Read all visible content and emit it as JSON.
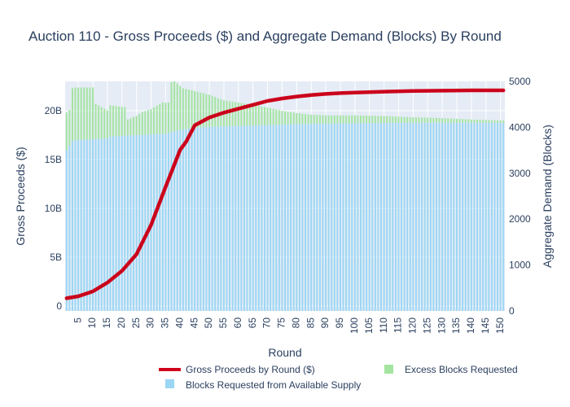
{
  "chart_data": {
    "type": "bar",
    "title": "Auction 110 - Gross Proceeds ($) and Aggregate Demand (Blocks) By Round",
    "xlabel": "Round",
    "ylabel": "Gross Proceeds ($)",
    "y2label": "Aggregate Demand (Blocks)",
    "x_range": [
      1,
      151
    ],
    "x_ticks": [
      5,
      10,
      15,
      20,
      25,
      30,
      35,
      40,
      45,
      50,
      55,
      60,
      65,
      70,
      75,
      80,
      85,
      90,
      95,
      100,
      105,
      110,
      115,
      120,
      125,
      130,
      135,
      140,
      145,
      150
    ],
    "x_tick_labels": [
      "5",
      "10",
      "15",
      "20",
      "25",
      "30",
      "35",
      "40",
      "45",
      "50",
      "55",
      "60",
      "65",
      "70",
      "75",
      "80",
      "85",
      "90",
      "95",
      "100",
      "105",
      "110",
      "115",
      "120",
      "125",
      "130",
      "135",
      "140",
      "145",
      "150"
    ],
    "ylim": [
      -0.5,
      23
    ],
    "y_ticks": [
      0,
      5,
      10,
      15,
      20
    ],
    "y_tick_labels": [
      "0",
      "5B",
      "10B",
      "15B",
      "20B"
    ],
    "y2lim": [
      0,
      5000
    ],
    "y2_ticks": [
      0,
      1000,
      2000,
      3000,
      4000,
      5000
    ],
    "y2_tick_labels": [
      "0",
      "1000",
      "2000",
      "3000",
      "4000",
      "5000"
    ],
    "barmode": "stack",
    "legend_position": "bottom",
    "grid": true,
    "series": [
      {
        "name": "Gross Proceeds by Round ($)",
        "type": "line",
        "axis": "y",
        "unit": "billions USD",
        "color": "#d0021b",
        "points": [
          [
            1,
            0.8
          ],
          [
            5,
            1.0
          ],
          [
            10,
            1.5
          ],
          [
            15,
            2.4
          ],
          [
            20,
            3.6
          ],
          [
            25,
            5.3
          ],
          [
            30,
            8.3
          ],
          [
            35,
            12.2
          ],
          [
            40,
            16.0
          ],
          [
            42,
            16.8
          ],
          [
            45,
            18.5
          ],
          [
            50,
            19.3
          ],
          [
            55,
            19.8
          ],
          [
            60,
            20.2
          ],
          [
            65,
            20.6
          ],
          [
            70,
            21.0
          ],
          [
            75,
            21.25
          ],
          [
            80,
            21.45
          ],
          [
            85,
            21.6
          ],
          [
            90,
            21.72
          ],
          [
            95,
            21.8
          ],
          [
            100,
            21.85
          ],
          [
            110,
            21.95
          ],
          [
            120,
            22.02
          ],
          [
            130,
            22.05
          ],
          [
            140,
            22.08
          ],
          [
            151,
            22.08
          ]
        ]
      },
      {
        "name": "Blocks Requested from Available Supply",
        "type": "bar",
        "axis": "y2",
        "color": "#9bd6f4",
        "points": [
          [
            1,
            3500
          ],
          [
            3,
            3700
          ],
          [
            4,
            3720
          ],
          [
            10,
            3740
          ],
          [
            15,
            3760
          ],
          [
            16,
            3800
          ],
          [
            25,
            3830
          ],
          [
            35,
            3860
          ],
          [
            37,
            3900
          ],
          [
            40,
            3940
          ],
          [
            45,
            3990
          ],
          [
            50,
            4010
          ],
          [
            60,
            4030
          ],
          [
            70,
            4050
          ],
          [
            80,
            4070
          ],
          [
            90,
            4080
          ],
          [
            100,
            4090
          ],
          [
            120,
            4100
          ],
          [
            151,
            4100
          ]
        ]
      },
      {
        "name": "Excess Blocks Requested",
        "type": "bar",
        "axis": "y2",
        "color": "#a3e4a0",
        "points": [
          [
            1,
            820
          ],
          [
            2,
            780
          ],
          [
            3,
            1150
          ],
          [
            10,
            1130
          ],
          [
            11,
            770
          ],
          [
            15,
            610
          ],
          [
            16,
            680
          ],
          [
            21,
            620
          ],
          [
            22,
            350
          ],
          [
            25,
            420
          ],
          [
            27,
            500
          ],
          [
            30,
            550
          ],
          [
            34,
            690
          ],
          [
            36,
            660
          ],
          [
            37,
            1080
          ],
          [
            38,
            1090
          ],
          [
            41,
            900
          ],
          [
            45,
            800
          ],
          [
            50,
            700
          ],
          [
            55,
            570
          ],
          [
            60,
            510
          ],
          [
            65,
            450
          ],
          [
            70,
            380
          ],
          [
            75,
            300
          ],
          [
            80,
            240
          ],
          [
            85,
            200
          ],
          [
            90,
            180
          ],
          [
            100,
            170
          ],
          [
            110,
            150
          ],
          [
            120,
            120
          ],
          [
            130,
            100
          ],
          [
            140,
            70
          ],
          [
            150,
            50
          ],
          [
            151,
            50
          ]
        ]
      }
    ]
  }
}
